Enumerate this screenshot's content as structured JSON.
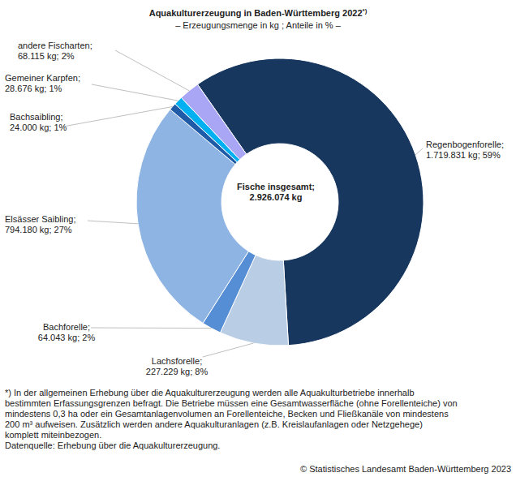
{
  "chart_data": {
    "type": "pie",
    "title": "Aquakulturerzeugung in Baden-Württemberg 2022",
    "title_note_mark": "*)",
    "subtitle": "– Erzeugungsmenge in kg ; Anteile in % –",
    "categories": [
      "Regenbogenforelle",
      "Lachsforelle",
      "Bachforelle",
      "Elsässer Saibling",
      "Bachsaibling",
      "Gemeiner Karpfen",
      "andere Fischarten"
    ],
    "values": [
      1719831,
      227229,
      64043,
      794180,
      24000,
      28676,
      68115
    ],
    "value_labels": [
      "1.719.831 kg",
      "227.229 kg",
      "64.043 kg",
      "794.180 kg",
      "24.000 kg",
      "28.676 kg",
      "68.115 kg"
    ],
    "percentages": [
      59,
      8,
      2,
      27,
      1,
      1,
      2
    ],
    "percent_labels": [
      "59%",
      "8%",
      "2%",
      "27%",
      "1%",
      "1%",
      "2%"
    ],
    "colors": [
      "#17375e",
      "#b9cde5",
      "#558ed5",
      "#8eb4e3",
      "#1f5ba6",
      "#00b0f0",
      "#a9a6f5"
    ],
    "center_label": "Fische insgesamt;",
    "total": 2926074,
    "total_label": "2.926.074 kg",
    "data_labels": true,
    "legend": "none",
    "footnote": [
      "*) In der allgemeinen Erhebung über die Aquakulturerzeugung werden alle Aquakulturbetriebe innerhalb",
      "bestimmten Erfassungsgrenzen befragt. Die Betriebe müssen eine Gesamtwasserfläche (ohne Forellenteiche) von",
      "mindestens 0,3 ha oder ein Gesamtanlagenvolumen an Forellenteiche, Becken und Fließkanäle von mindestens",
      "200 m³ aufweisen. Zusätzlich werden andere Aquakulturanlagen (z.B. Kreislaufanlagen oder Netzgehege)",
      "komplett miteinbezogen.",
      "Datenquelle: Erhebung über die Aquakulturerzeugung."
    ],
    "copyright": "© Statistisches Landesamt Baden-Württemberg 2023"
  }
}
